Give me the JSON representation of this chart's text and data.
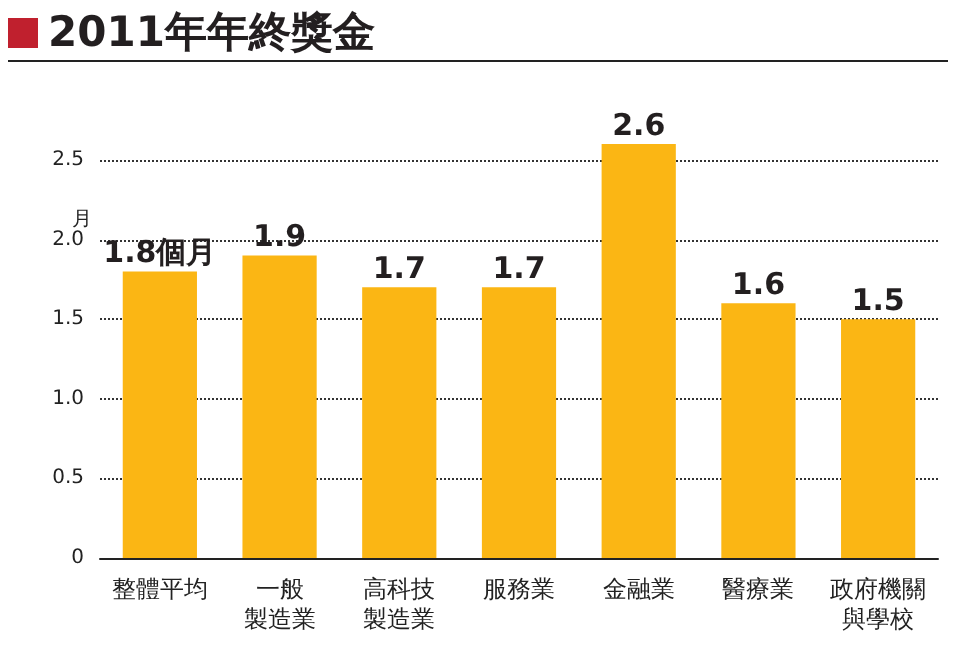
{
  "chart_data": {
    "type": "bar",
    "title": "2011年年終獎金",
    "ylabel": "月",
    "categories": [
      "整體平均",
      "一般製造業",
      "高科技製造業",
      "服務業",
      "金融業",
      "醫療業",
      "政府機關與學校"
    ],
    "values": [
      1.8,
      1.9,
      1.7,
      1.7,
      2.6,
      1.6,
      1.5
    ],
    "value_labels": [
      "1.8個月",
      "1.9",
      "1.7",
      "1.7",
      "2.6",
      "1.6",
      "1.5"
    ],
    "color": "#fbb614",
    "ylim": [
      0,
      2.6
    ],
    "yticks": [
      0,
      0.5,
      {
        "value": 1,
        "label": "1.0"
      },
      1.5,
      {
        "value": 2,
        "label": "2.0"
      },
      2.5
    ],
    "grid": "y"
  }
}
